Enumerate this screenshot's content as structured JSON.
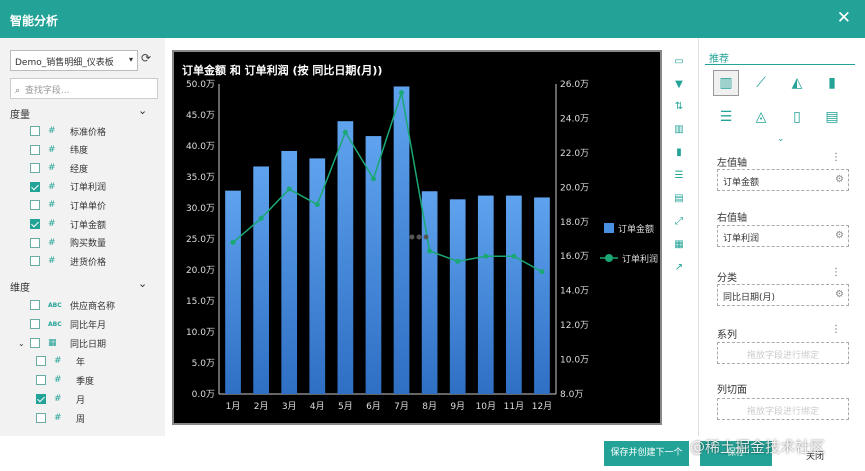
{
  "window": {
    "title": "智能分析",
    "close_glyph": "✕"
  },
  "left": {
    "dataset": "Demo_销售明细_仪表板",
    "search_placeholder": "查找字段...",
    "measures_title": "度量",
    "measures": [
      {
        "label": "标准价格",
        "checked": false
      },
      {
        "label": "纬度",
        "checked": false
      },
      {
        "label": "经度",
        "checked": false
      },
      {
        "label": "订单利润",
        "checked": true
      },
      {
        "label": "订单单价",
        "checked": false
      },
      {
        "label": "订单金额",
        "checked": true
      },
      {
        "label": "购买数量",
        "checked": false
      },
      {
        "label": "进货价格",
        "checked": false
      }
    ],
    "dimensions_title": "维度",
    "dimensions": [
      {
        "label": "供应商名称",
        "type": "ABC",
        "checked": false
      },
      {
        "label": "同比年月",
        "type": "ABC",
        "checked": false
      },
      {
        "label": "同比日期",
        "type": "date",
        "checked": false
      },
      {
        "label": "年",
        "type": "#",
        "checked": false
      },
      {
        "label": "季度",
        "type": "#",
        "checked": false
      },
      {
        "label": "月",
        "type": "#",
        "checked": true
      },
      {
        "label": "周",
        "type": "#",
        "checked": false
      }
    ]
  },
  "chart_data": {
    "type": "bar",
    "title": "订单金额 和 订单利润 (按 同比日期(月))",
    "categories": [
      "1月",
      "2月",
      "3月",
      "4月",
      "5月",
      "6月",
      "7月",
      "8月",
      "9月",
      "10月",
      "11月",
      "12月"
    ],
    "series": [
      {
        "name": "订单金额",
        "type": "bar",
        "axis": "left",
        "color": "#4a90e2",
        "values": [
          32.8,
          36.7,
          39.2,
          38.0,
          44.0,
          41.6,
          49.6,
          32.7,
          31.4,
          32.0,
          32.0,
          31.7
        ]
      },
      {
        "name": "订单利润",
        "type": "line",
        "axis": "right",
        "color": "#1aa874",
        "values": [
          16.8,
          18.2,
          19.9,
          19.0,
          23.2,
          20.5,
          25.5,
          16.3,
          15.7,
          16.0,
          16.0,
          15.1
        ]
      }
    ],
    "left_axis": {
      "ticks": [
        "0.0万",
        "5.0万",
        "10.0万",
        "15.0万",
        "20.0万",
        "25.0万",
        "30.0万",
        "35.0万",
        "40.0万",
        "45.0万",
        "50.0万"
      ],
      "ylim": [
        0,
        50
      ]
    },
    "right_axis": {
      "ticks": [
        "8.0万",
        "10.0万",
        "12.0万",
        "14.0万",
        "16.0万",
        "18.0万",
        "20.0万",
        "22.0万",
        "24.0万",
        "26.0万"
      ],
      "ylim": [
        8,
        26
      ]
    },
    "legend_position": "right",
    "grid": false
  },
  "right": {
    "recommend_title": "推荐",
    "left_axis_label": "左值轴",
    "left_axis_field": "订单金额",
    "right_axis_label": "右值轴",
    "right_axis_field": "订单利润",
    "category_label": "分类",
    "category_field": "同比日期(月)",
    "series_label": "系列",
    "series_placeholder": "拖放字段进行绑定",
    "slicer_label": "列切面",
    "slicer_placeholder": "拖放字段进行绑定",
    "dots": "⋮"
  },
  "footer": {
    "save_and_new": "保存并创建下一个",
    "save": "保存",
    "close": "关闭",
    "watermark": "@稀土掘金技术社区"
  },
  "colors": {
    "accent": "#23a397",
    "bar": "#4a90e2",
    "line": "#1aa874"
  }
}
